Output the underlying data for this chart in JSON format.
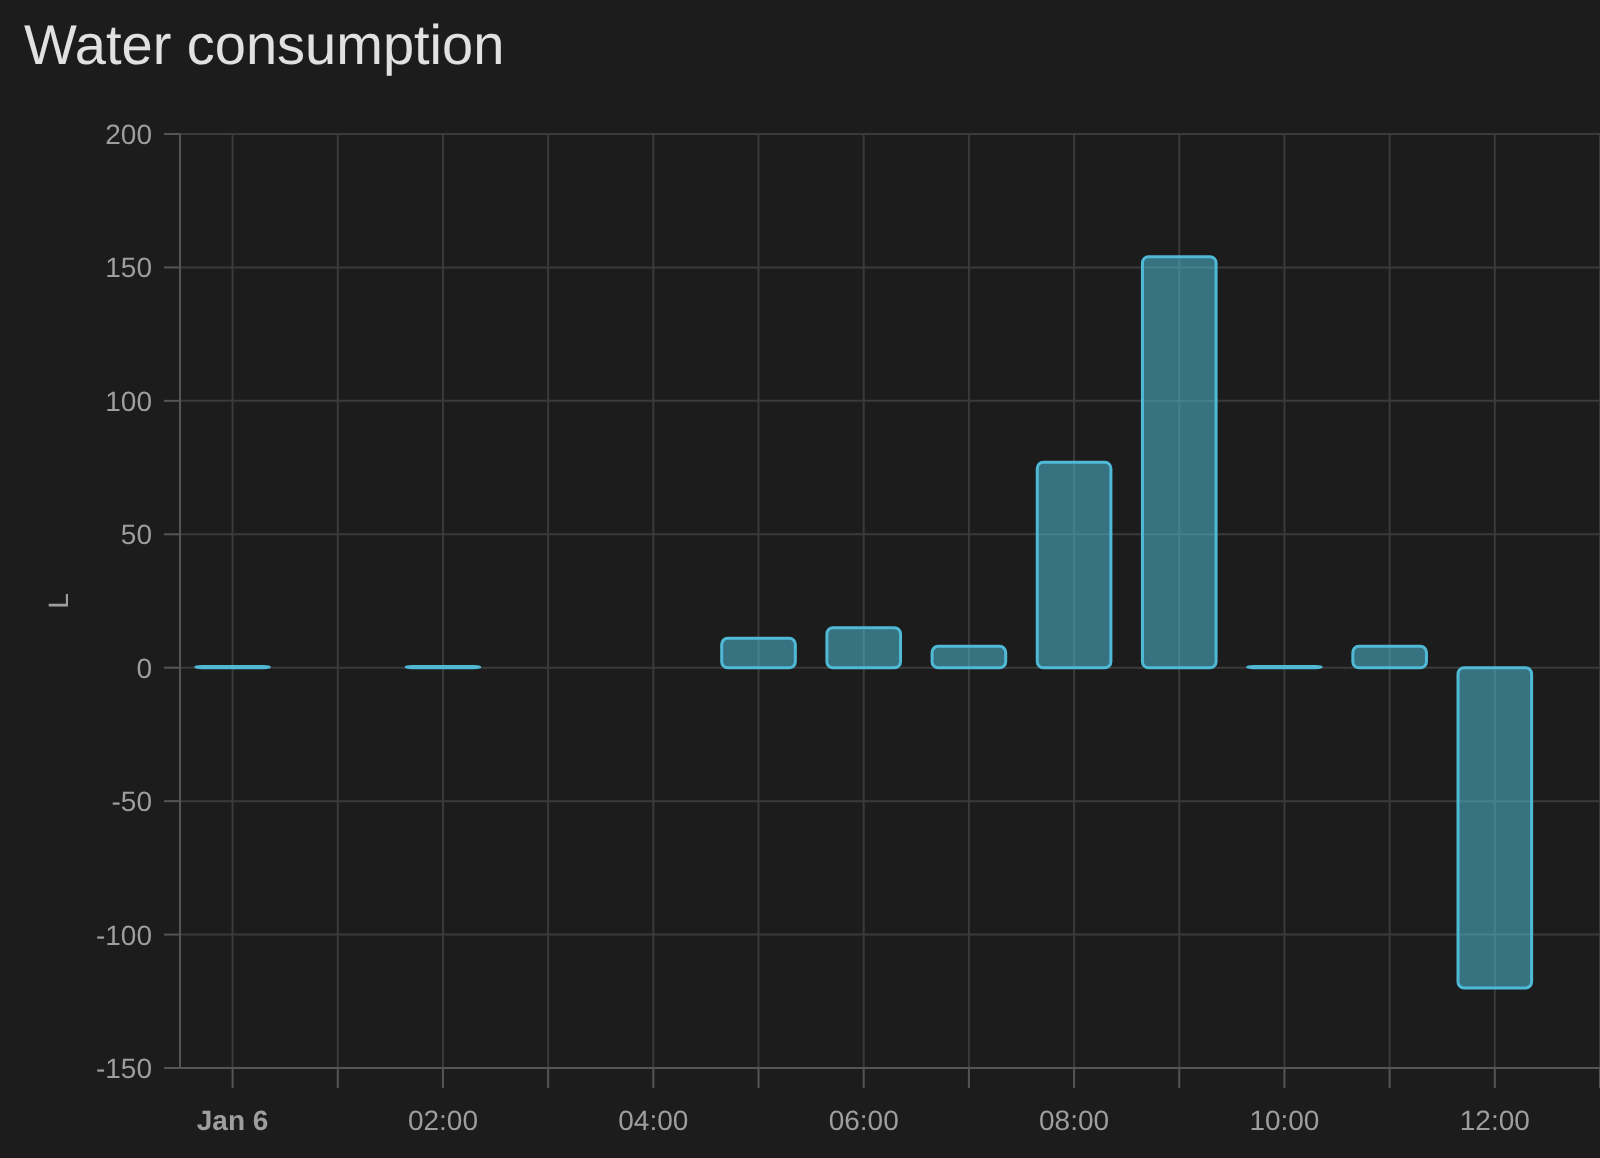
{
  "chart_data": {
    "type": "bar",
    "title": "Water consumption",
    "ylabel": "L",
    "x": [
      0,
      2,
      5,
      6,
      7,
      8,
      9,
      10,
      11,
      12
    ],
    "series": [
      {
        "color": "#4fb9d6",
        "values": [
          0.5,
          0.5,
          11,
          15,
          8,
          77,
          154,
          0.5,
          8,
          -120
        ]
      }
    ],
    "xlim": [
      -0.5,
      13
    ],
    "xticks": [
      {
        "value": 0,
        "label": "Jan 6"
      },
      {
        "value": 1,
        "label": null
      },
      {
        "value": 2,
        "label": "02:00"
      },
      {
        "value": 3,
        "label": null
      },
      {
        "value": 4,
        "label": "04:00"
      },
      {
        "value": 5,
        "label": null
      },
      {
        "value": 6,
        "label": "06:00"
      },
      {
        "value": 7,
        "label": null
      },
      {
        "value": 8,
        "label": "08:00"
      },
      {
        "value": 9,
        "label": null
      },
      {
        "value": 10,
        "label": "10:00"
      },
      {
        "value": 11,
        "label": null
      },
      {
        "value": 12,
        "label": "12:00"
      },
      {
        "value": 13,
        "label": null
      }
    ],
    "ylim": [
      -150,
      200
    ],
    "yticks": [
      -150,
      -100,
      -50,
      0,
      50,
      100,
      150,
      200
    ],
    "grid": true
  }
}
